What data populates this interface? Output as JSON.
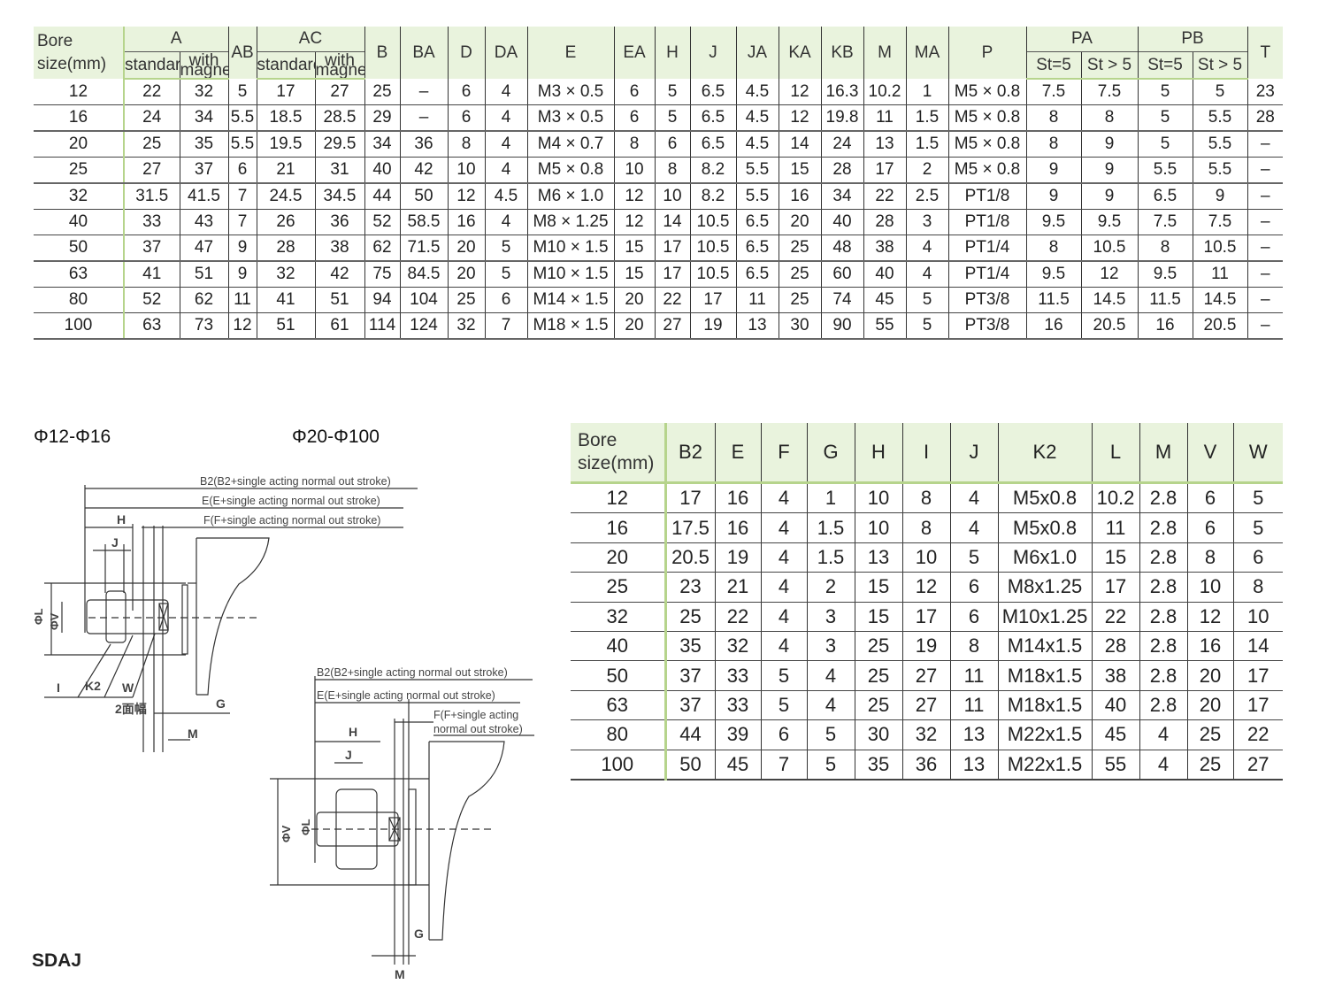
{
  "table1": {
    "bore_header": [
      "Bore",
      "size(mm)"
    ],
    "groups": {
      "A": "A",
      "AB": "AB",
      "AC": "AC",
      "PA": "PA",
      "PB": "PB"
    },
    "sub": {
      "standard": "standard",
      "with_magnet": [
        "with",
        "magnet"
      ],
      "st_eq": "St=5",
      "st_gt": "St > 5"
    },
    "singles": [
      "B",
      "BA",
      "D",
      "DA",
      "E",
      "EA",
      "H",
      "J",
      "JA",
      "KA",
      "KB",
      "M",
      "MA",
      "P"
    ],
    "T": "T",
    "rows": [
      [
        "12",
        "22",
        "32",
        "5",
        "17",
        "27",
        "25",
        "–",
        "6",
        "4",
        "M3 × 0.5",
        "6",
        "5",
        "6.5",
        "4.5",
        "12",
        "16.3",
        "10.2",
        "1",
        "M5 × 0.8",
        "7.5",
        "7.5",
        "5",
        "5",
        "23"
      ],
      [
        "16",
        "24",
        "34",
        "5.5",
        "18.5",
        "28.5",
        "29",
        "–",
        "6",
        "4",
        "M3 × 0.5",
        "6",
        "5",
        "6.5",
        "4.5",
        "12",
        "19.8",
        "11",
        "1.5",
        "M5 × 0.8",
        "8",
        "8",
        "5",
        "5.5",
        "28"
      ],
      [
        "20",
        "25",
        "35",
        "5.5",
        "19.5",
        "29.5",
        "34",
        "36",
        "8",
        "4",
        "M4 × 0.7",
        "8",
        "6",
        "6.5",
        "4.5",
        "14",
        "24",
        "13",
        "1.5",
        "M5 × 0.8",
        "8",
        "9",
        "5",
        "5.5",
        "–"
      ],
      [
        "25",
        "27",
        "37",
        "6",
        "21",
        "31",
        "40",
        "42",
        "10",
        "4",
        "M5 × 0.8",
        "10",
        "8",
        "8.2",
        "5.5",
        "15",
        "28",
        "17",
        "2",
        "M5 × 0.8",
        "9",
        "9",
        "5.5",
        "5.5",
        "–"
      ],
      [
        "32",
        "31.5",
        "41.5",
        "7",
        "24.5",
        "34.5",
        "44",
        "50",
        "12",
        "4.5",
        "M6 × 1.0",
        "12",
        "10",
        "8.2",
        "5.5",
        "16",
        "34",
        "22",
        "2.5",
        "PT1/8",
        "9",
        "9",
        "6.5",
        "9",
        "–"
      ],
      [
        "40",
        "33",
        "43",
        "7",
        "26",
        "36",
        "52",
        "58.5",
        "16",
        "4",
        "M8 × 1.25",
        "12",
        "14",
        "10.5",
        "6.5",
        "20",
        "40",
        "28",
        "3",
        "PT1/8",
        "9.5",
        "9.5",
        "7.5",
        "7.5",
        "–"
      ],
      [
        "50",
        "37",
        "47",
        "9",
        "28",
        "38",
        "62",
        "71.5",
        "20",
        "5",
        "M10 × 1.5",
        "15",
        "17",
        "10.5",
        "6.5",
        "25",
        "48",
        "38",
        "4",
        "PT1/4",
        "8",
        "10.5",
        "8",
        "10.5",
        "–"
      ],
      [
        "63",
        "41",
        "51",
        "9",
        "32",
        "42",
        "75",
        "84.5",
        "20",
        "5",
        "M10 × 1.5",
        "15",
        "17",
        "10.5",
        "6.5",
        "25",
        "60",
        "40",
        "4",
        "PT1/4",
        "9.5",
        "12",
        "9.5",
        "11",
        "–"
      ],
      [
        "80",
        "52",
        "62",
        "11",
        "41",
        "51",
        "94",
        "104",
        "25",
        "6",
        "M14 × 1.5",
        "20",
        "22",
        "17",
        "11",
        "25",
        "74",
        "45",
        "5",
        "PT3/8",
        "11.5",
        "14.5",
        "11.5",
        "14.5",
        "–"
      ],
      [
        "100",
        "63",
        "73",
        "12",
        "51",
        "61",
        "114",
        "124",
        "32",
        "7",
        "M18 × 1.5",
        "20",
        "27",
        "19",
        "13",
        "30",
        "90",
        "55",
        "5",
        "PT3/8",
        "16",
        "20.5",
        "16",
        "20.5",
        "–"
      ]
    ]
  },
  "table2": {
    "bore_header": [
      "Bore",
      "size(mm)"
    ],
    "columns": [
      "B2",
      "E",
      "F",
      "G",
      "H",
      "I",
      "J",
      "K2",
      "L",
      "M",
      "V",
      "W"
    ],
    "rows": [
      [
        "12",
        "17",
        "16",
        "4",
        "1",
        "10",
        "8",
        "4",
        "M5x0.8",
        "10.2",
        "2.8",
        "6",
        "5"
      ],
      [
        "16",
        "17.5",
        "16",
        "4",
        "1.5",
        "10",
        "8",
        "4",
        "M5x0.8",
        "11",
        "2.8",
        "6",
        "5"
      ],
      [
        "20",
        "20.5",
        "19",
        "4",
        "1.5",
        "13",
        "10",
        "5",
        "M6x1.0",
        "15",
        "2.8",
        "8",
        "6"
      ],
      [
        "25",
        "23",
        "21",
        "4",
        "2",
        "15",
        "12",
        "6",
        "M8x1.25",
        "17",
        "2.8",
        "10",
        "8"
      ],
      [
        "32",
        "25",
        "22",
        "4",
        "3",
        "15",
        "17",
        "6",
        "M10x1.25",
        "22",
        "2.8",
        "12",
        "10"
      ],
      [
        "40",
        "35",
        "32",
        "4",
        "3",
        "25",
        "19",
        "8",
        "M14x1.5",
        "28",
        "2.8",
        "16",
        "14"
      ],
      [
        "50",
        "37",
        "33",
        "5",
        "4",
        "25",
        "27",
        "11",
        "M18x1.5",
        "38",
        "2.8",
        "20",
        "17"
      ],
      [
        "63",
        "37",
        "33",
        "5",
        "4",
        "25",
        "27",
        "11",
        "M18x1.5",
        "40",
        "2.8",
        "20",
        "17"
      ],
      [
        "80",
        "44",
        "39",
        "6",
        "5",
        "30",
        "32",
        "13",
        "M22x1.5",
        "45",
        "4",
        "25",
        "22"
      ],
      [
        "100",
        "50",
        "45",
        "7",
        "5",
        "35",
        "36",
        "13",
        "M22x1.5",
        "55",
        "4",
        "25",
        "27"
      ]
    ]
  },
  "diagrams": {
    "caption_small": "Φ12-Φ16",
    "caption_large": "Φ20-Φ100",
    "labels": {
      "b2": "B2(B2+single acting normal out stroke)",
      "e": "E(E+single acting normal out stroke)",
      "f": "F(F+single acting normal out stroke)",
      "f_line1": "F(F+single acting",
      "f_line2": "normal out stroke)",
      "H": "H",
      "J": "J",
      "L": "ΦL",
      "V": "ΦV",
      "I": "I",
      "K2": "K2",
      "W": "W",
      "width_across": "2面幅",
      "G": "G",
      "M": "M"
    }
  },
  "model": "SDAJ"
}
